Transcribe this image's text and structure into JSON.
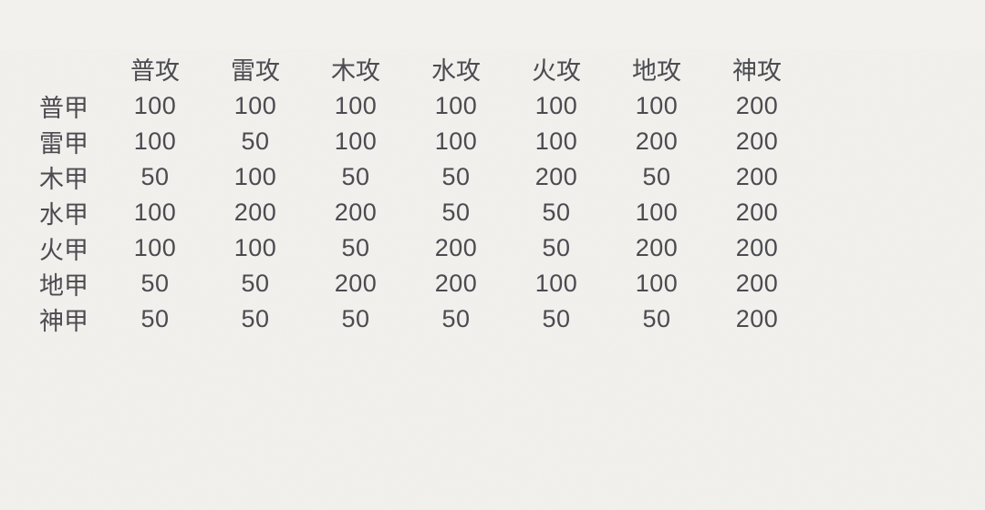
{
  "colors": {
    "background": "#f2f1ee",
    "text": "#4b4b50"
  },
  "chart_data": {
    "type": "table",
    "title": "",
    "description_visible": false,
    "columns": [
      "",
      "普攻",
      "雷攻",
      "木攻",
      "水攻",
      "火攻",
      "地攻",
      "神攻"
    ],
    "rows": [
      [
        "普甲",
        100,
        100,
        100,
        100,
        100,
        100,
        200
      ],
      [
        "雷甲",
        100,
        50,
        100,
        100,
        100,
        200,
        200
      ],
      [
        "木甲",
        50,
        100,
        50,
        50,
        200,
        50,
        200
      ],
      [
        "水甲",
        100,
        200,
        200,
        50,
        50,
        100,
        200
      ],
      [
        "火甲",
        100,
        100,
        50,
        200,
        50,
        200,
        200
      ],
      [
        "地甲",
        50,
        50,
        200,
        200,
        100,
        100,
        200
      ],
      [
        "神甲",
        50,
        50,
        50,
        50,
        50,
        50,
        200
      ]
    ]
  }
}
